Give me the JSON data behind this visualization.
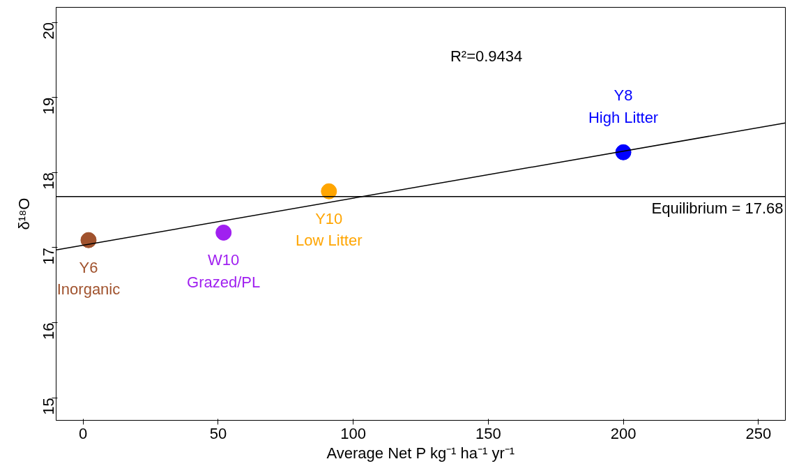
{
  "chart_data": {
    "type": "scatter",
    "xlabel": "Average Net P kg⁻¹ ha⁻¹ yr⁻¹",
    "ylabel": "δ¹⁸O",
    "xlim": [
      -10,
      260
    ],
    "ylim": [
      14.7,
      20.2
    ],
    "xticks": [
      0,
      50,
      100,
      150,
      200,
      250
    ],
    "yticks": [
      15,
      16,
      17,
      18,
      19,
      20
    ],
    "grid": false,
    "marker": "circle",
    "series": [
      {
        "name": "Y6\nInorganic",
        "color": "#a0522d",
        "x": [
          2
        ],
        "values": [
          17.1
        ]
      },
      {
        "name": "W10\nGrazed/PL",
        "color": "#a020f0",
        "x": [
          52
        ],
        "values": [
          17.2
        ]
      },
      {
        "name": "Y10\nLow Litter",
        "color": "#ffa500",
        "x": [
          91
        ],
        "values": [
          17.75
        ]
      },
      {
        "name": "Y8\nHigh Litter",
        "color": "#0000ff",
        "x": [
          200
        ],
        "values": [
          18.27
        ]
      },
      {
        "type": "line",
        "color": "#000000",
        "line_style": "solid",
        "marker": "none",
        "x": [
          -10,
          260
        ],
        "values": [
          16.97,
          18.66
        ]
      }
    ],
    "ref_lines": [
      {
        "axis": "y",
        "value": 17.68,
        "label": "Equilibrium = 17.68",
        "color": "#000000"
      }
    ],
    "annotations": [
      "R²=0.9434"
    ]
  }
}
